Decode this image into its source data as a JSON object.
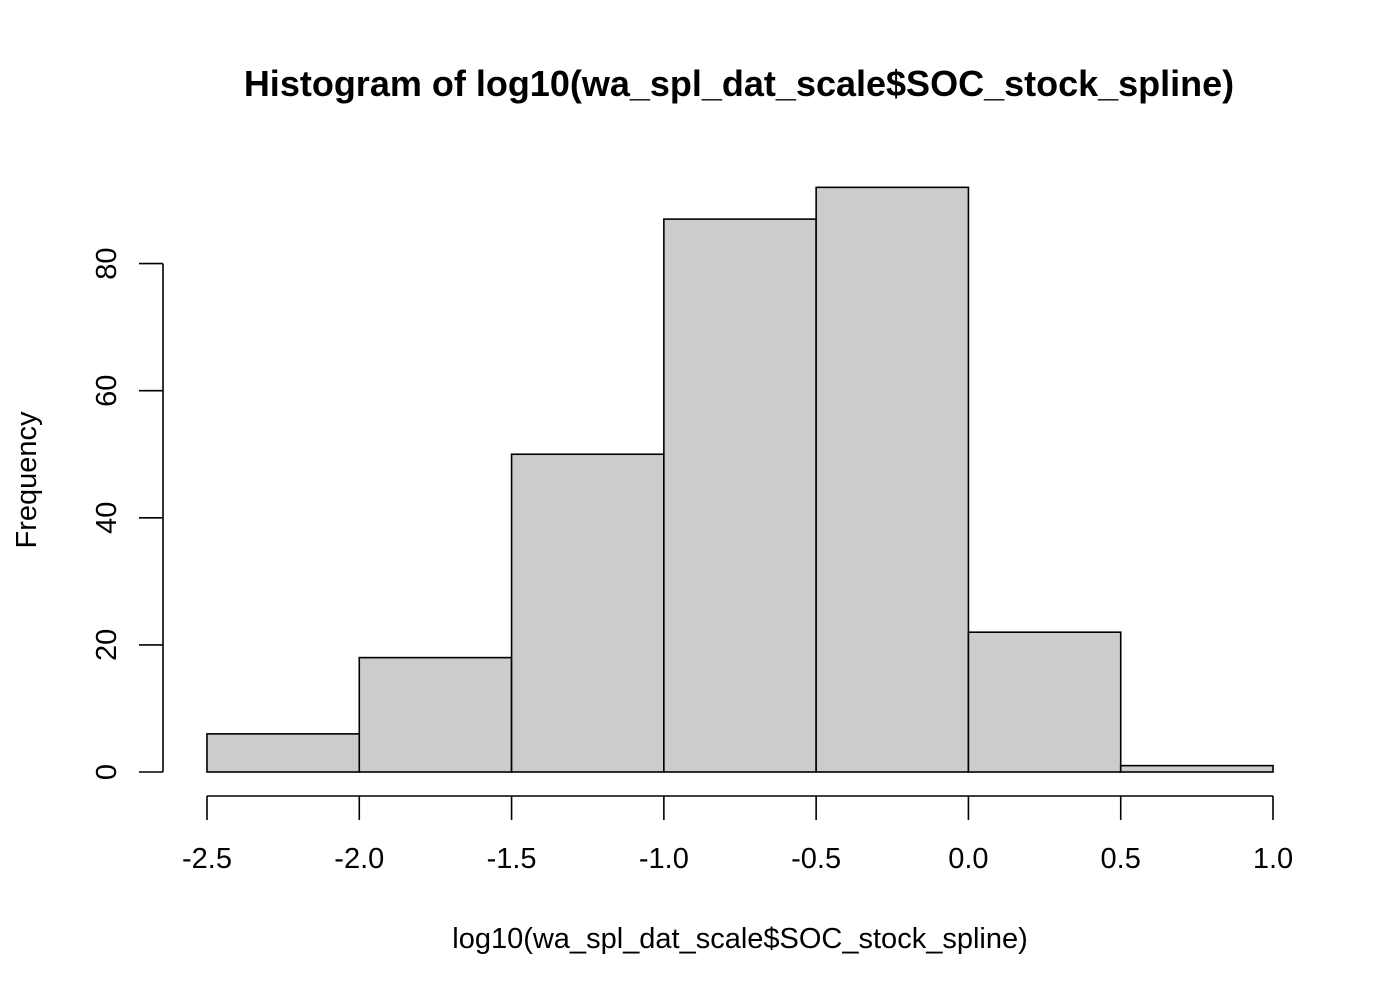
{
  "chart_data": {
    "type": "bar",
    "subtype": "histogram",
    "title": "Histogram of log10(wa_spl_dat_scale$SOC_stock_spline)",
    "xlabel": "log10(wa_spl_dat_scale$SOC_stock_spline)",
    "ylabel": "Frequency",
    "bins": [
      {
        "start": -2.5,
        "end": -2.0,
        "count": 6
      },
      {
        "start": -2.0,
        "end": -1.5,
        "count": 18
      },
      {
        "start": -1.5,
        "end": -1.0,
        "count": 50
      },
      {
        "start": -1.0,
        "end": -0.5,
        "count": 87
      },
      {
        "start": -0.5,
        "end": 0.0,
        "count": 92
      },
      {
        "start": 0.0,
        "end": 0.5,
        "count": 22
      },
      {
        "start": 0.5,
        "end": 1.0,
        "count": 1
      }
    ],
    "xlim": [
      -2.5,
      1.0
    ],
    "ylim": [
      0,
      92
    ],
    "x_ticks": [
      "-2.5",
      "-2.0",
      "-1.5",
      "-1.0",
      "-0.5",
      "0.0",
      "0.5",
      "1.0"
    ],
    "y_ticks": [
      "0",
      "20",
      "40",
      "60",
      "80"
    ],
    "grid": false,
    "bar_fill": "#cccccc",
    "bar_stroke": "#000000"
  }
}
